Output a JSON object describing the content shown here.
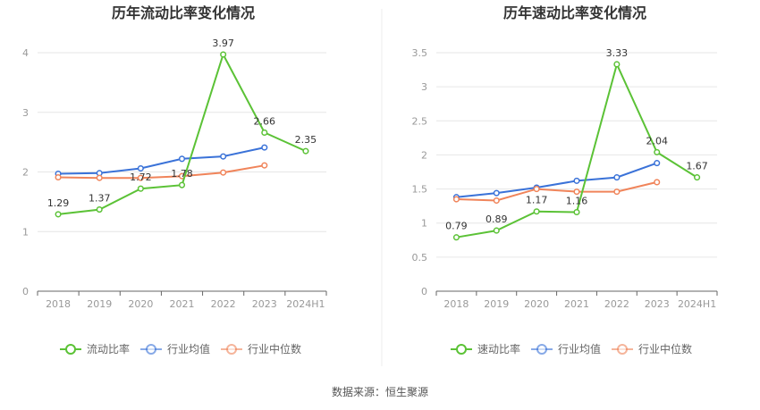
{
  "chart_data": [
    {
      "type": "line",
      "title": "历年流动比率变化情况",
      "categories": [
        "2018",
        "2019",
        "2020",
        "2021",
        "2022",
        "2023",
        "2024H1"
      ],
      "ylim": [
        0,
        4
      ],
      "yticks": [
        0,
        1,
        2,
        3,
        4
      ],
      "grid": true,
      "legend_position": "bottom",
      "series": [
        {
          "name": "流动比率",
          "color": "#5bc236",
          "values": [
            1.29,
            1.37,
            1.72,
            1.78,
            3.97,
            2.66,
            2.35
          ],
          "labels": [
            "1.29",
            "1.37",
            "1.72",
            "1.78",
            "3.97",
            "2.66",
            "2.35"
          ]
        },
        {
          "name": "行业均值",
          "color": "#3a72d8",
          "values": [
            1.97,
            1.98,
            2.06,
            2.22,
            2.26,
            2.41,
            null
          ]
        },
        {
          "name": "行业中位数",
          "color": "#f0845a",
          "values": [
            1.91,
            1.9,
            1.9,
            1.93,
            1.99,
            2.11,
            null
          ]
        }
      ]
    },
    {
      "type": "line",
      "title": "历年速动比率变化情况",
      "categories": [
        "2018",
        "2019",
        "2020",
        "2021",
        "2022",
        "2023",
        "2024H1"
      ],
      "ylim": [
        0,
        3.5
      ],
      "yticks": [
        0,
        0.5,
        1,
        1.5,
        2,
        2.5,
        3,
        3.5
      ],
      "grid": true,
      "legend_position": "bottom",
      "series": [
        {
          "name": "速动比率",
          "color": "#5bc236",
          "values": [
            0.79,
            0.89,
            1.17,
            1.16,
            3.33,
            2.04,
            1.67
          ],
          "labels": [
            "0.79",
            "0.89",
            "1.17",
            "1.16",
            "3.33",
            "2.04",
            "1.67"
          ]
        },
        {
          "name": "行业均值",
          "color": "#3a72d8",
          "values": [
            1.38,
            1.44,
            1.52,
            1.62,
            1.67,
            1.88,
            null
          ]
        },
        {
          "name": "行业中位数",
          "color": "#f0845a",
          "values": [
            1.35,
            1.33,
            1.5,
            1.46,
            1.46,
            1.6,
            null
          ]
        }
      ]
    }
  ],
  "source_text": "数据来源：恒生聚源"
}
